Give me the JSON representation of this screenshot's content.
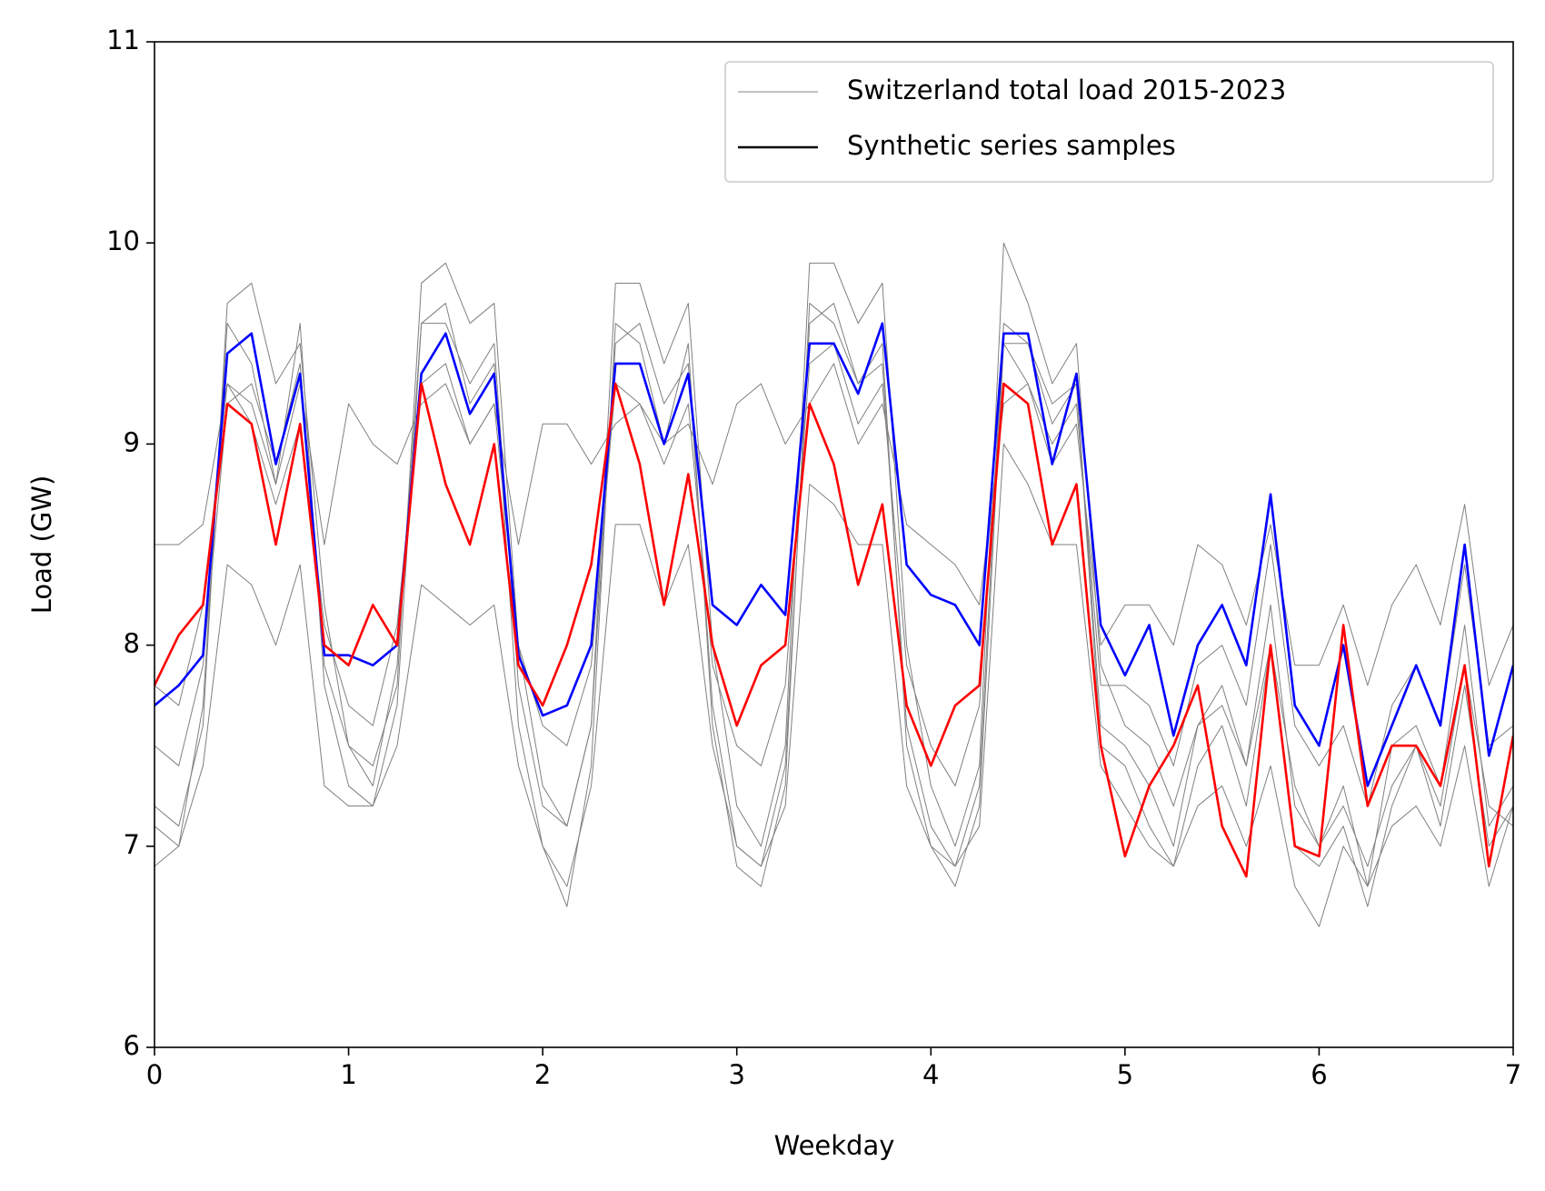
{
  "chart_data": {
    "type": "line",
    "xlabel": "Weekday",
    "ylabel": "Load (GW)",
    "xlim": [
      0,
      7
    ],
    "ylim": [
      6,
      11
    ],
    "xticks": [
      0,
      1,
      2,
      3,
      4,
      5,
      6,
      7
    ],
    "yticks": [
      6,
      7,
      8,
      9,
      10,
      11
    ],
    "legend": "upper right",
    "x": [
      0,
      0.125,
      0.25,
      0.375,
      0.5,
      0.625,
      0.75,
      0.875,
      1,
      1.125,
      1.25,
      1.375,
      1.5,
      1.625,
      1.75,
      1.875,
      2,
      2.125,
      2.25,
      2.375,
      2.5,
      2.625,
      2.75,
      2.875,
      3,
      3.125,
      3.25,
      3.375,
      3.5,
      3.625,
      3.75,
      3.875,
      4,
      4.125,
      4.25,
      4.375,
      4.5,
      4.625,
      4.75,
      4.875,
      5,
      5.125,
      5.25,
      5.375,
      5.5,
      5.625,
      5.75,
      5.875,
      6,
      6.125,
      6.25,
      6.375,
      6.5,
      6.625,
      6.75,
      6.875,
      7
    ],
    "series": [
      {
        "name": "Switzerland total load 2015-2023",
        "color": "#808080",
        "linewidth": 1,
        "lines": [
          {
            "values": [
              7.2,
              7.1,
              7.6,
              9.7,
              9.8,
              9.3,
              9.5,
              8.2,
              7.5,
              7.4,
              7.8,
              9.8,
              9.9,
              9.6,
              9.7,
              8.0,
              7.3,
              7.1,
              7.6,
              9.8,
              9.8,
              9.4,
              9.7,
              8.0,
              7.2,
              7.0,
              7.5,
              9.9,
              9.9,
              9.6,
              9.8,
              8.0,
              7.3,
              7.0,
              7.4,
              10.0,
              9.7,
              9.3,
              9.5,
              7.9,
              7.6,
              7.5,
              7.2,
              7.6,
              7.8,
              7.4,
              8.0,
              7.3,
              7.0,
              7.2,
              6.9,
              7.3,
              7.5,
              7.2,
              7.9,
              7.2,
              7.1
            ]
          },
          {
            "values": [
              6.9,
              7.0,
              7.4,
              8.4,
              8.3,
              8.0,
              8.4,
              7.3,
              7.2,
              7.2,
              7.5,
              8.3,
              8.2,
              8.1,
              8.2,
              7.4,
              7.0,
              6.8,
              7.3,
              8.6,
              8.6,
              8.2,
              8.5,
              7.5,
              7.0,
              6.9,
              7.2,
              8.8,
              8.7,
              8.5,
              8.5,
              7.3,
              7.0,
              6.9,
              7.1,
              9.0,
              8.8,
              8.5,
              8.5,
              7.4,
              7.2,
              7.0,
              6.9,
              7.2,
              7.3,
              7.0,
              7.4,
              6.8,
              6.6,
              7.0,
              6.8,
              7.1,
              7.2,
              7.0,
              7.5,
              6.8,
              7.2
            ]
          },
          {
            "values": [
              8.5,
              8.5,
              8.6,
              9.3,
              9.2,
              8.8,
              9.3,
              8.5,
              9.2,
              9.0,
              8.9,
              9.2,
              9.3,
              9.0,
              9.2,
              8.5,
              9.1,
              9.1,
              8.9,
              9.1,
              9.2,
              9.0,
              9.1,
              8.8,
              9.2,
              9.3,
              9.0,
              9.2,
              9.4,
              9.0,
              9.2,
              8.6,
              8.5,
              8.4,
              8.2,
              9.2,
              9.3,
              8.9,
              9.1,
              8.0,
              8.2,
              8.2,
              8.0,
              8.5,
              8.4,
              8.1,
              8.6,
              7.9,
              7.9,
              8.2,
              7.8,
              8.2,
              8.4,
              8.1,
              8.7,
              7.8,
              8.1
            ]
          },
          {
            "values": [
              7.5,
              7.4,
              7.9,
              9.2,
              9.3,
              8.9,
              9.4,
              7.9,
              7.5,
              7.3,
              7.9,
              9.6,
              9.6,
              9.3,
              9.5,
              7.8,
              7.2,
              7.1,
              7.6,
              9.5,
              9.6,
              9.2,
              9.4,
              7.7,
              7.0,
              6.9,
              7.4,
              9.6,
              9.7,
              9.3,
              9.4,
              7.6,
              7.1,
              6.9,
              7.3,
              9.6,
              9.5,
              9.2,
              9.3,
              7.6,
              7.5,
              7.3,
              7.0,
              7.6,
              7.7,
              7.4,
              8.2,
              7.2,
              7.0,
              7.3,
              6.8,
              7.5,
              7.6,
              7.3,
              8.1,
              7.1,
              7.3
            ]
          },
          {
            "values": [
              7.8,
              7.7,
              8.2,
              9.3,
              9.1,
              8.7,
              9.1,
              8.1,
              7.7,
              7.6,
              8.1,
              9.3,
              9.4,
              9.0,
              9.2,
              8.0,
              7.6,
              7.5,
              7.9,
              9.3,
              9.2,
              8.9,
              9.2,
              7.9,
              7.5,
              7.4,
              7.8,
              9.4,
              9.5,
              9.1,
              9.3,
              7.9,
              7.5,
              7.3,
              7.7,
              9.5,
              9.3,
              9.0,
              9.2,
              7.8,
              7.8,
              7.7,
              7.4,
              7.9,
              8.0,
              7.7,
              8.5,
              7.6,
              7.4,
              7.6,
              7.2,
              7.7,
              7.9,
              7.6,
              8.4,
              7.5,
              7.6
            ]
          },
          {
            "values": [
              7.1,
              7.0,
              7.7,
              9.6,
              9.4,
              8.8,
              9.6,
              7.8,
              7.3,
              7.2,
              7.7,
              9.6,
              9.7,
              9.2,
              9.4,
              7.6,
              7.0,
              6.7,
              7.4,
              9.6,
              9.5,
              9.0,
              9.5,
              7.6,
              6.9,
              6.8,
              7.3,
              9.7,
              9.6,
              9.3,
              9.5,
              7.5,
              7.0,
              6.8,
              7.2,
              9.5,
              9.5,
              9.1,
              9.3,
              7.5,
              7.4,
              7.1,
              6.9,
              7.4,
              7.6,
              7.2,
              8.0,
              7.0,
              6.9,
              7.1,
              6.7,
              7.2,
              7.5,
              7.1,
              7.8,
              7.0,
              7.2
            ]
          }
        ]
      },
      {
        "name": "Synthetic series samples",
        "color": "#000000",
        "linewidth": 2.6,
        "lines": [
          {
            "color": "#0000ff",
            "values": [
              7.7,
              7.8,
              7.95,
              9.45,
              9.55,
              8.9,
              9.35,
              7.95,
              7.95,
              7.9,
              8.0,
              9.35,
              9.55,
              9.15,
              9.35,
              7.95,
              7.65,
              7.7,
              8.0,
              9.4,
              9.4,
              9.0,
              9.35,
              8.2,
              8.1,
              8.3,
              8.15,
              9.5,
              9.5,
              9.25,
              9.6,
              8.4,
              8.25,
              8.2,
              8.0,
              9.55,
              9.55,
              8.9,
              9.35,
              8.1,
              7.85,
              8.1,
              7.55,
              8.0,
              8.2,
              7.9,
              8.75,
              7.7,
              7.5,
              8.0,
              7.3,
              7.6,
              7.9,
              7.6,
              8.5,
              7.45,
              7.9
            ]
          },
          {
            "color": "#ff0000",
            "values": [
              7.8,
              8.05,
              8.2,
              9.2,
              9.1,
              8.5,
              9.1,
              8.0,
              7.9,
              8.2,
              8.0,
              9.3,
              8.8,
              8.5,
              9.0,
              7.9,
              7.7,
              8.0,
              8.4,
              9.3,
              8.9,
              8.2,
              8.85,
              8.0,
              7.6,
              7.9,
              8.0,
              9.2,
              8.9,
              8.3,
              8.7,
              7.7,
              7.4,
              7.7,
              7.8,
              9.3,
              9.2,
              8.5,
              8.8,
              7.5,
              6.95,
              7.3,
              7.5,
              7.8,
              7.1,
              6.85,
              8.0,
              7.0,
              6.95,
              8.1,
              7.2,
              7.5,
              7.5,
              7.3,
              7.9,
              6.9,
              7.55
            ]
          }
        ]
      }
    ]
  }
}
